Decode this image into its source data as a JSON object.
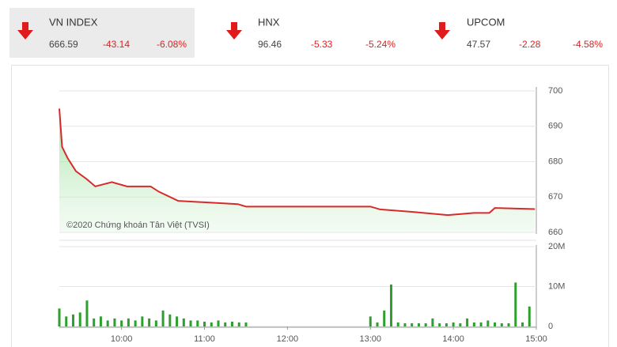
{
  "indices": [
    {
      "name": "VN INDEX",
      "value": "666.59",
      "change": "-43.14",
      "percent": "-6.08%"
    },
    {
      "name": "HNX",
      "value": "96.46",
      "change": "-5.33",
      "percent": "-5.24%"
    },
    {
      "name": "UPCOM",
      "value": "47.57",
      "change": "-2.28",
      "percent": "-4.58%"
    }
  ],
  "chart_data": [
    {
      "type": "line",
      "annotation": "©2020 Chứng khoán Tân Việt (TVSI)",
      "x": [
        "09:15",
        "09:17",
        "09:21",
        "09:27",
        "09:35",
        "09:41",
        "09:53",
        "10:04",
        "10:21",
        "10:27",
        "10:41",
        "11:01",
        "11:24",
        "11:30",
        "13:00",
        "13:07",
        "13:30",
        "13:56",
        "14:15",
        "14:26",
        "14:30",
        "14:59"
      ],
      "series": [
        {
          "name": "VN INDEX",
          "color": "#d62b2b",
          "values": [
            695,
            684.2,
            681,
            677.3,
            675,
            673,
            674.2,
            673,
            673,
            671.5,
            668.9,
            668.5,
            668,
            667.3,
            667.3,
            666.5,
            665.8,
            664.9,
            665.5,
            665.5,
            666.9,
            666.6
          ]
        }
      ],
      "xlim": [
        "09:15",
        "15:00"
      ],
      "ylim": [
        660,
        700
      ],
      "yticks": [
        660,
        670,
        680,
        690,
        700
      ],
      "grid": true
    },
    {
      "type": "bar",
      "x": [
        "09:15",
        "09:20",
        "09:25",
        "09:30",
        "09:35",
        "09:40",
        "09:45",
        "09:50",
        "09:55",
        "10:00",
        "10:05",
        "10:10",
        "10:15",
        "10:20",
        "10:25",
        "10:30",
        "10:35",
        "10:40",
        "10:45",
        "10:50",
        "10:55",
        "11:00",
        "11:05",
        "11:10",
        "11:15",
        "11:20",
        "11:25",
        "11:30",
        "13:00",
        "13:05",
        "13:10",
        "13:15",
        "13:20",
        "13:25",
        "13:30",
        "13:35",
        "13:40",
        "13:45",
        "13:50",
        "13:55",
        "14:00",
        "14:05",
        "14:10",
        "14:15",
        "14:20",
        "14:25",
        "14:30",
        "14:35",
        "14:40",
        "14:45",
        "14:50",
        "14:55"
      ],
      "values": [
        4500000,
        2500000,
        3000000,
        3500000,
        6500000,
        2000000,
        2500000,
        1500000,
        2000000,
        1500000,
        2000000,
        1500000,
        2500000,
        2000000,
        1500000,
        4000000,
        3000000,
        2500000,
        2000000,
        1500000,
        1500000,
        1200000,
        1000000,
        1500000,
        1000000,
        1200000,
        1000000,
        1000000,
        2500000,
        1000000,
        4000000,
        10500000,
        1000000,
        800000,
        800000,
        800000,
        800000,
        2000000,
        800000,
        800000,
        1000000,
        800000,
        2000000,
        1000000,
        1000000,
        1500000,
        1000000,
        800000,
        800000,
        11000000,
        1000000,
        5000000
      ],
      "color": "#2e9e2e",
      "xlim": [
        "09:15",
        "15:00"
      ],
      "xticks": [
        "10:00",
        "11:00",
        "12:00",
        "13:00",
        "14:00",
        "15:00"
      ],
      "ylim": [
        0,
        20000000
      ],
      "yticks": [
        0,
        {
          "value": 10000000,
          "label": "10M"
        },
        {
          "value": 20000000,
          "label": "20M"
        }
      ],
      "grid": true
    }
  ]
}
